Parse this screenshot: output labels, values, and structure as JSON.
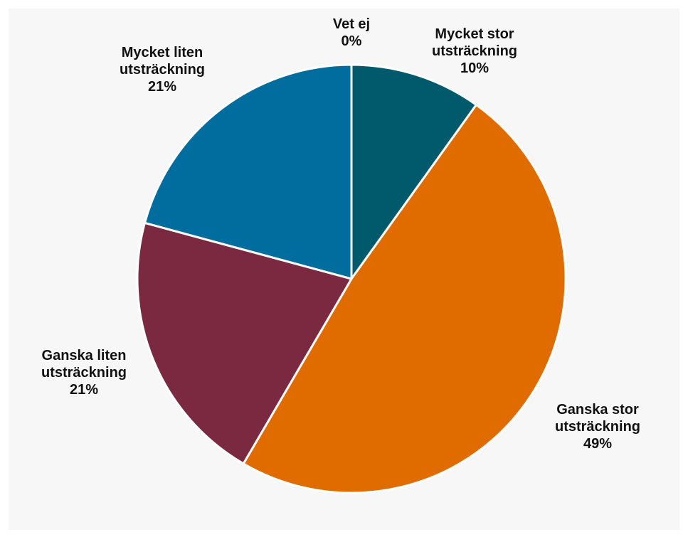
{
  "chart_data": {
    "type": "pie",
    "categories": [
      "Mycket stor utsträckning",
      "Ganska stor utsträckning",
      "Ganska liten utsträckning",
      "Mycket liten utsträckning",
      "Vet ej"
    ],
    "values": [
      10,
      49,
      21,
      21,
      0
    ],
    "value_labels": [
      "10%",
      "49%",
      "21%",
      "21%",
      "0%"
    ],
    "colors": [
      "#005a6c",
      "#e06c00",
      "#7a2941",
      "#006d9e",
      "#9a9a9a"
    ]
  }
}
